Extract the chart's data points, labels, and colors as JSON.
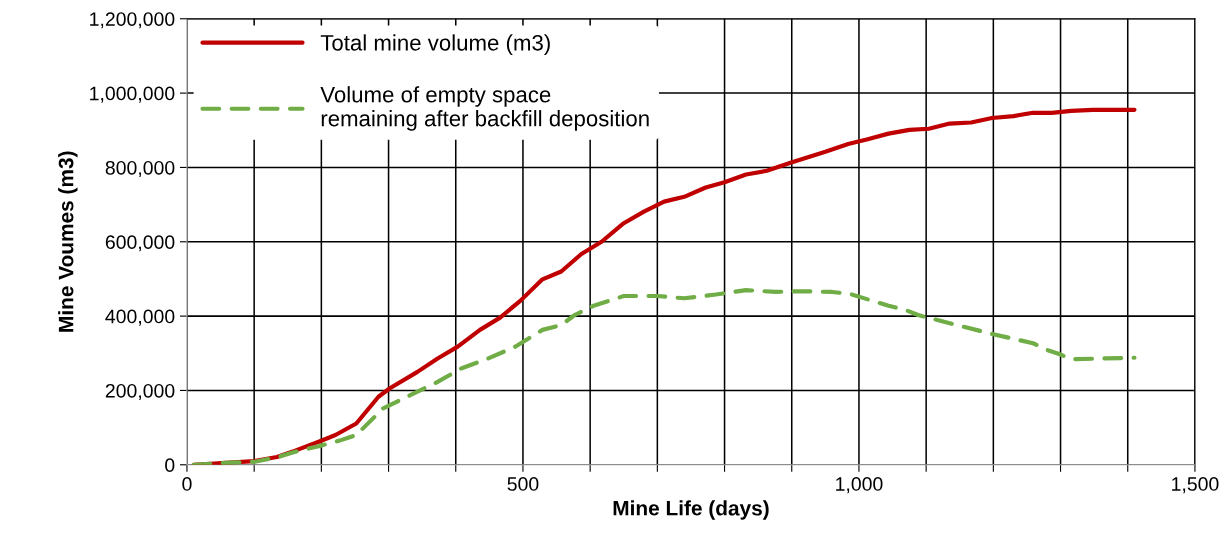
{
  "chart_data": {
    "type": "line",
    "xlabel": "Mine Life (days)",
    "ylabel": "Mine Voumes (m3)",
    "xlim": [
      0,
      1500
    ],
    "ylim": [
      0,
      1200000
    ],
    "xticks": [
      0,
      {
        "value": 100,
        "label": null
      },
      {
        "value": 200,
        "label": null
      },
      {
        "value": 300,
        "label": null
      },
      {
        "value": 400,
        "label": null
      },
      500,
      {
        "value": 600,
        "label": null
      },
      {
        "value": 700,
        "label": null
      },
      {
        "value": 800,
        "label": null
      },
      {
        "value": 900,
        "label": null
      },
      {
        "value": 1000,
        "label": "1,000"
      },
      {
        "value": 1100,
        "label": null
      },
      {
        "value": 1200,
        "label": null
      },
      {
        "value": 1300,
        "label": null
      },
      {
        "value": 1400,
        "label": null
      },
      {
        "value": 1500,
        "label": "1,500"
      }
    ],
    "yticks": [
      0,
      {
        "value": 200000,
        "label": "200,000"
      },
      {
        "value": 400000,
        "label": "400,000"
      },
      {
        "value": 600000,
        "label": "600,000"
      },
      {
        "value": 800000,
        "label": "800,000"
      },
      {
        "value": 1000000,
        "label": "1,000,000"
      },
      {
        "value": 1200000,
        "label": "1,200,000"
      }
    ],
    "grid": true,
    "legend": "top left",
    "marker": "none",
    "series": [
      {
        "name": "Total mine volume (m3)",
        "color": "#c00000",
        "line_style": "solid",
        "x": [
          10,
          100,
          134,
          161,
          196,
          221,
          252,
          285,
          302,
          343,
          373,
          403,
          436,
          466,
          496,
          529,
          557,
          587,
          617,
          650,
          680,
          710,
          740,
          772,
          800,
          832,
          863,
          897,
          950,
          984,
          1013,
          1044,
          1075,
          1104,
          1135,
          1167,
          1198,
          1230,
          1259,
          1287,
          1316,
          1348,
          1410
        ],
        "values": [
          0,
          10000,
          21000,
          38000,
          62000,
          80000,
          111000,
          183000,
          206000,
          250000,
          286000,
          318000,
          363000,
          396000,
          441000,
          499000,
          520000,
          567000,
          600000,
          650000,
          681000,
          708000,
          721000,
          746000,
          760000,
          781000,
          791000,
          812000,
          842000,
          863000,
          876000,
          891000,
          901000,
          904000,
          918000,
          921000,
          933000,
          938000,
          947000,
          947000,
          952000,
          955000,
          955000
        ]
      },
      {
        "name": "Volume of empty space\nremaining after backfill deposition",
        "color": "#70ad47",
        "line_style": "dashed",
        "x": [
          10,
          55,
          101,
          136,
          161,
          196,
          227,
          252,
          262,
          292,
          333,
          373,
          408,
          448,
          489,
          529,
          557,
          577,
          604,
          650,
          700,
          740,
          787,
          832,
          876,
          913,
          960,
          986,
          1044,
          1070,
          1088,
          1128,
          1196,
          1259,
          1280,
          1298,
          1316,
          1410
        ],
        "values": [
          0,
          5000,
          8000,
          21000,
          35000,
          50000,
          65000,
          80000,
          98000,
          152000,
          188000,
          223000,
          259000,
          286000,
          318000,
          363000,
          376000,
          403000,
          427000,
          454000,
          454000,
          448000,
          458000,
          470000,
          465000,
          467000,
          465000,
          460000,
          428000,
          416000,
          403000,
          384000,
          353000,
          327000,
          309000,
          298000,
          284000,
          288000
        ]
      }
    ]
  }
}
